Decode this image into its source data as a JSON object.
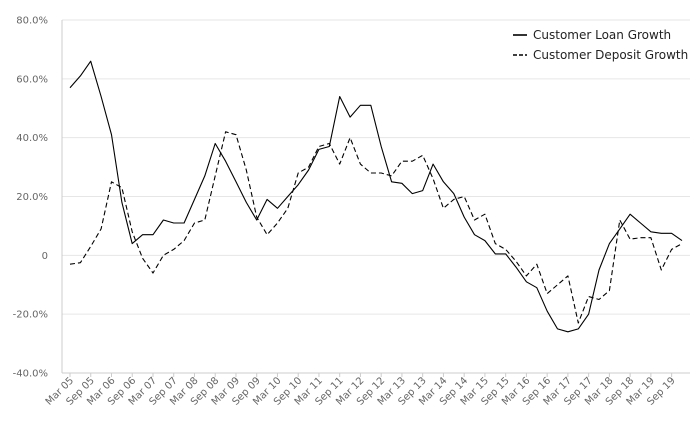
{
  "chart_data": {
    "type": "line",
    "title": "",
    "xlabel": "",
    "ylabel": "",
    "ylim": [
      -40,
      80
    ],
    "y_ticks": [
      -40,
      -20,
      0,
      20,
      40,
      60,
      80
    ],
    "y_tick_labels": [
      "-40.0%",
      "-20.0%",
      "0",
      "20.0%",
      "40.0%",
      "60.0%",
      "80.0%"
    ],
    "x_tick_labels": [
      "Mar 05",
      "Sep 05",
      "Mar 06",
      "Sep 06",
      "Mar 07",
      "Sep 07",
      "Mar 08",
      "Sep 08",
      "Mar 09",
      "Sep 09",
      "Mar 10",
      "Sep 10",
      "Mar 11",
      "Sep 11",
      "Mar 12",
      "Sep 12",
      "Mar 13",
      "Sep 13",
      "Mar 14",
      "Sep 14",
      "Mar 15",
      "Sep 15",
      "Mar 16",
      "Sep 16",
      "Mar 17",
      "Sep 17",
      "Mar 18",
      "Sep 18",
      "Mar 19",
      "Sep 19"
    ],
    "x": [
      "Mar 05",
      "Jun 05",
      "Sep 05",
      "Dec 05",
      "Mar 06",
      "Jun 06",
      "Sep 06",
      "Dec 06",
      "Mar 07",
      "Jun 07",
      "Sep 07",
      "Dec 07",
      "Mar 08",
      "Jun 08",
      "Sep 08",
      "Dec 08",
      "Mar 09",
      "Jun 09",
      "Sep 09",
      "Dec 09",
      "Mar 10",
      "Jun 10",
      "Sep 10",
      "Dec 10",
      "Mar 11",
      "Jun 11",
      "Sep 11",
      "Dec 11",
      "Mar 12",
      "Jun 12",
      "Sep 12",
      "Dec 12",
      "Mar 13",
      "Jun 13",
      "Sep 13",
      "Dec 13",
      "Mar 14",
      "Jun 14",
      "Sep 14",
      "Dec 14",
      "Mar 15",
      "Jun 15",
      "Sep 15",
      "Dec 15",
      "Mar 16",
      "Jun 16",
      "Sep 16",
      "Dec 16",
      "Mar 17",
      "Jun 17",
      "Sep 17",
      "Dec 17",
      "Mar 18",
      "Jun 18",
      "Sep 18",
      "Dec 18",
      "Mar 19",
      "Jun 19",
      "Sep 19",
      "Dec 19"
    ],
    "series": [
      {
        "name": "Customer Loan Growth",
        "style": "solid",
        "color": "#000000",
        "values": [
          57,
          61,
          66,
          54,
          41,
          18,
          4,
          7,
          7,
          12,
          11,
          11,
          19,
          27,
          38,
          32,
          25,
          18,
          12,
          19,
          16,
          20,
          24,
          29,
          36,
          37,
          54,
          47,
          51,
          51,
          37,
          25,
          24.5,
          21,
          22,
          31,
          25,
          21,
          13,
          7,
          5,
          0.5,
          0.5,
          -4,
          -9,
          -11,
          -19,
          -25,
          -26,
          -25,
          -20,
          -5,
          4,
          9,
          14,
          11,
          8,
          7.5,
          7.5,
          5
        ]
      },
      {
        "name": "Customer Deposit Growth",
        "style": "dashed",
        "color": "#000000",
        "values": [
          -3,
          -2.5,
          3,
          9,
          25,
          23,
          8,
          -1,
          -6,
          0,
          2,
          5,
          11,
          12,
          27,
          42,
          41,
          29,
          13,
          7,
          11,
          16,
          28,
          30,
          37,
          38,
          31,
          40,
          31,
          28,
          28,
          27,
          32,
          32,
          34,
          26,
          16,
          19,
          20,
          12,
          14,
          4,
          2,
          -2,
          -7,
          -3,
          -13,
          -10,
          -7,
          -23,
          -14,
          -15,
          -12,
          12,
          5.5,
          6,
          6,
          -5,
          2,
          4
        ]
      }
    ],
    "legend_position": "top-right",
    "grid": true
  }
}
